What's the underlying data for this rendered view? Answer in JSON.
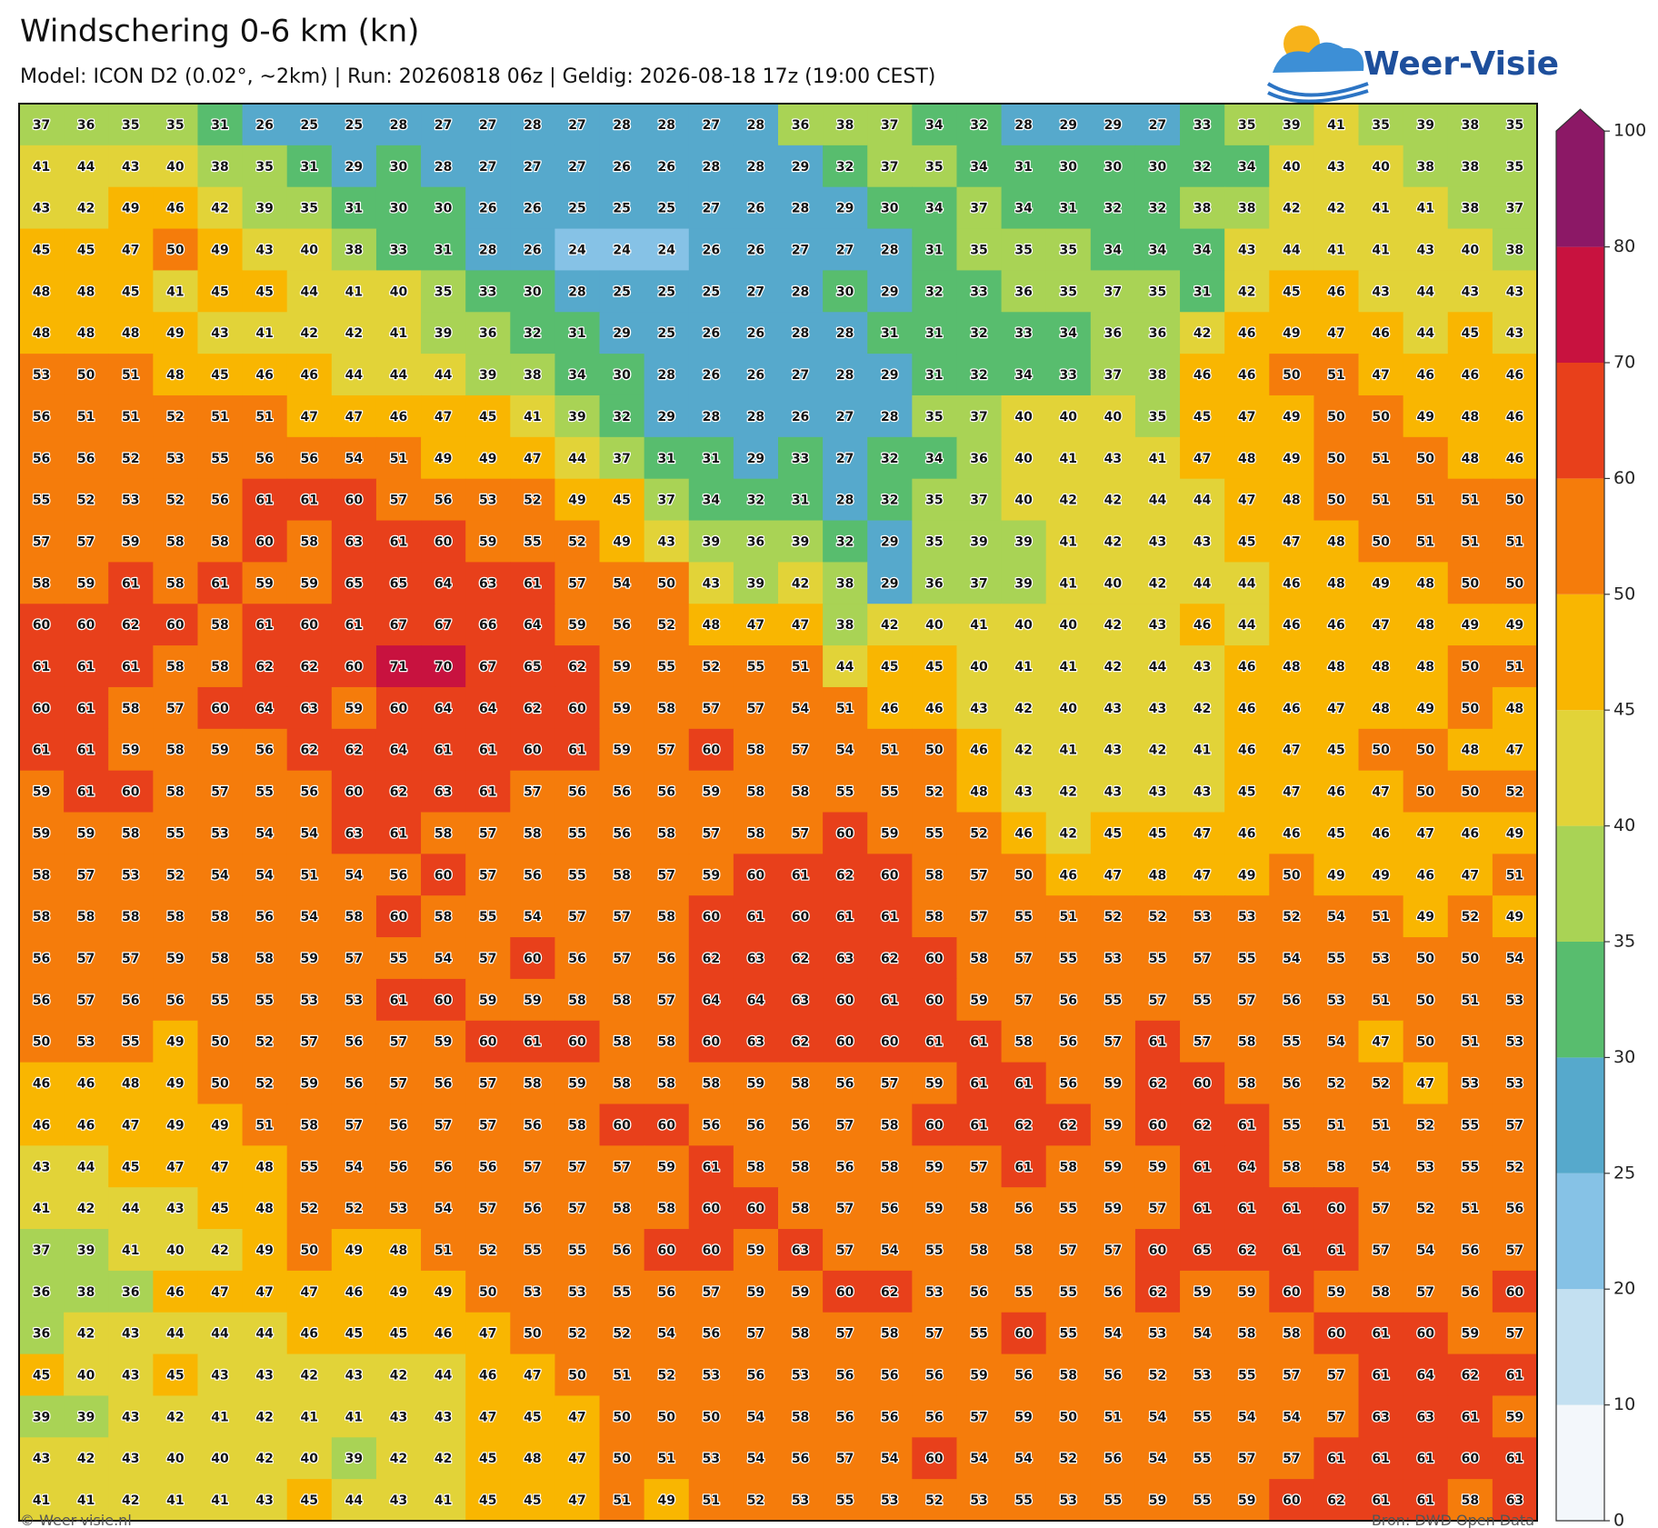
{
  "title": "Windschering 0-6 km (kn)",
  "subtitle": "Model: ICON D2 (0.02°, ~2km)  |  Run: 20260818 06z  |  Geldig: 2026-08-18 17z (19:00 CEST)",
  "logo": "Weer-Visie",
  "credit_left": "© Weer-visie.nl",
  "credit_right": "Bron: DWD Open Data",
  "colorbar": {
    "ticks": [
      0,
      10,
      20,
      25,
      30,
      35,
      40,
      45,
      50,
      60,
      70,
      80,
      100
    ],
    "colors": [
      "#f3f7fb",
      "#c3e0f1",
      "#86c2e6",
      "#56a9cc",
      "#58bd6e",
      "#a9d355",
      "#e2d338",
      "#f9b601",
      "#f57c0b",
      "#e8401b",
      "#c8123f",
      "#8c1866"
    ]
  },
  "grid": [
    [
      37,
      36,
      35,
      35,
      31,
      26,
      25,
      25,
      28,
      27,
      27,
      28,
      27,
      28,
      28,
      27,
      28,
      36,
      38,
      37,
      34,
      32,
      28,
      29,
      29,
      27,
      33,
      35,
      39,
      41,
      35,
      39,
      38,
      35
    ],
    [
      41,
      44,
      43,
      40,
      38,
      35,
      31,
      29,
      30,
      28,
      27,
      27,
      27,
      26,
      26,
      28,
      28,
      29,
      32,
      37,
      35,
      34,
      31,
      30,
      30,
      30,
      32,
      34,
      40,
      43,
      40,
      38,
      38,
      35
    ],
    [
      43,
      42,
      49,
      46,
      42,
      39,
      35,
      31,
      30,
      30,
      26,
      26,
      25,
      25,
      25,
      27,
      26,
      28,
      29,
      30,
      34,
      37,
      34,
      31,
      32,
      32,
      38,
      38,
      42,
      42,
      41,
      41,
      38,
      37
    ],
    [
      45,
      45,
      47,
      50,
      49,
      43,
      40,
      38,
      33,
      31,
      28,
      26,
      24,
      24,
      24,
      26,
      26,
      27,
      27,
      28,
      31,
      35,
      35,
      35,
      34,
      34,
      34,
      43,
      44,
      41,
      41,
      43,
      40,
      38
    ],
    [
      48,
      48,
      45,
      41,
      45,
      45,
      44,
      41,
      40,
      35,
      33,
      30,
      28,
      25,
      25,
      25,
      27,
      28,
      30,
      29,
      32,
      33,
      36,
      35,
      37,
      35,
      31,
      42,
      45,
      46,
      43,
      44,
      43,
      43
    ],
    [
      48,
      48,
      48,
      49,
      43,
      41,
      42,
      42,
      41,
      39,
      36,
      32,
      31,
      29,
      25,
      26,
      26,
      28,
      28,
      31,
      31,
      32,
      33,
      34,
      36,
      36,
      42,
      46,
      49,
      47,
      46,
      44,
      45,
      43
    ],
    [
      53,
      50,
      51,
      48,
      45,
      46,
      46,
      44,
      44,
      44,
      39,
      38,
      34,
      30,
      28,
      26,
      26,
      27,
      28,
      29,
      31,
      32,
      34,
      33,
      37,
      38,
      46,
      46,
      50,
      51,
      47,
      46,
      46,
      46
    ],
    [
      56,
      51,
      51,
      52,
      51,
      51,
      47,
      47,
      46,
      47,
      45,
      41,
      39,
      32,
      29,
      28,
      28,
      26,
      27,
      28,
      35,
      37,
      40,
      40,
      40,
      35,
      45,
      47,
      49,
      50,
      50,
      49,
      48,
      46
    ],
    [
      56,
      56,
      52,
      53,
      55,
      56,
      56,
      54,
      51,
      49,
      49,
      47,
      44,
      37,
      31,
      31,
      29,
      33,
      27,
      32,
      34,
      36,
      40,
      41,
      43,
      41,
      47,
      48,
      49,
      50,
      51,
      50,
      48,
      46
    ],
    [
      55,
      52,
      53,
      52,
      56,
      61,
      61,
      60,
      57,
      56,
      53,
      52,
      49,
      45,
      37,
      34,
      32,
      31,
      28,
      32,
      35,
      37,
      40,
      42,
      42,
      44,
      44,
      47,
      48,
      50,
      51,
      51,
      51,
      50
    ],
    [
      57,
      57,
      59,
      58,
      58,
      60,
      58,
      63,
      61,
      60,
      59,
      55,
      52,
      49,
      43,
      39,
      36,
      39,
      32,
      29,
      35,
      39,
      39,
      41,
      42,
      43,
      43,
      45,
      47,
      48,
      50,
      51,
      51,
      51
    ],
    [
      58,
      59,
      61,
      58,
      61,
      59,
      59,
      65,
      65,
      64,
      63,
      61,
      57,
      54,
      50,
      43,
      39,
      42,
      38,
      29,
      36,
      37,
      39,
      41,
      40,
      42,
      44,
      44,
      46,
      48,
      49,
      48,
      50,
      50
    ],
    [
      60,
      60,
      62,
      60,
      58,
      61,
      60,
      61,
      67,
      67,
      66,
      64,
      59,
      56,
      52,
      48,
      47,
      47,
      38,
      42,
      40,
      41,
      40,
      40,
      42,
      43,
      46,
      44,
      46,
      46,
      47,
      48,
      49,
      49
    ],
    [
      61,
      61,
      61,
      58,
      58,
      62,
      62,
      60,
      71,
      70,
      67,
      65,
      62,
      59,
      55,
      52,
      55,
      51,
      44,
      45,
      45,
      40,
      41,
      41,
      42,
      44,
      43,
      46,
      48,
      48,
      48,
      48,
      50,
      51
    ],
    [
      60,
      61,
      58,
      57,
      60,
      64,
      63,
      59,
      60,
      64,
      64,
      62,
      60,
      59,
      58,
      57,
      57,
      54,
      51,
      46,
      46,
      43,
      42,
      40,
      43,
      43,
      42,
      46,
      46,
      47,
      48,
      49,
      50,
      48
    ],
    [
      61,
      61,
      59,
      58,
      59,
      56,
      62,
      62,
      64,
      61,
      61,
      60,
      61,
      59,
      57,
      60,
      58,
      57,
      54,
      51,
      50,
      46,
      42,
      41,
      43,
      42,
      41,
      46,
      47,
      45,
      50,
      50,
      48,
      47
    ],
    [
      59,
      61,
      60,
      58,
      57,
      55,
      56,
      60,
      62,
      63,
      61,
      57,
      56,
      56,
      56,
      59,
      58,
      58,
      55,
      55,
      52,
      48,
      43,
      42,
      43,
      43,
      43,
      45,
      47,
      46,
      47,
      50,
      50,
      52
    ],
    [
      59,
      59,
      58,
      55,
      53,
      54,
      54,
      63,
      61,
      58,
      57,
      58,
      55,
      56,
      58,
      57,
      58,
      57,
      60,
      59,
      55,
      52,
      46,
      42,
      45,
      45,
      47,
      46,
      46,
      45,
      46,
      47,
      46,
      49
    ],
    [
      58,
      57,
      53,
      52,
      54,
      54,
      51,
      54,
      56,
      60,
      57,
      56,
      55,
      58,
      57,
      59,
      60,
      61,
      62,
      60,
      58,
      57,
      50,
      46,
      47,
      48,
      47,
      49,
      50,
      49,
      49,
      46,
      47,
      51
    ],
    [
      58,
      58,
      58,
      58,
      58,
      56,
      54,
      58,
      60,
      58,
      55,
      54,
      57,
      57,
      58,
      60,
      61,
      60,
      61,
      61,
      58,
      57,
      55,
      51,
      52,
      52,
      53,
      53,
      52,
      54,
      51,
      49,
      52,
      49
    ],
    [
      56,
      57,
      57,
      59,
      58,
      58,
      59,
      57,
      55,
      54,
      57,
      60,
      56,
      57,
      56,
      62,
      63,
      62,
      63,
      62,
      60,
      58,
      57,
      55,
      53,
      55,
      57,
      55,
      54,
      55,
      53,
      50,
      50,
      54
    ],
    [
      56,
      57,
      56,
      56,
      55,
      55,
      53,
      53,
      61,
      60,
      59,
      59,
      58,
      58,
      57,
      64,
      64,
      63,
      60,
      61,
      60,
      59,
      57,
      56,
      55,
      57,
      55,
      57,
      56,
      53,
      51,
      50,
      51,
      53
    ],
    [
      50,
      53,
      55,
      49,
      50,
      52,
      57,
      56,
      57,
      59,
      60,
      61,
      60,
      58,
      58,
      60,
      63,
      62,
      60,
      60,
      61,
      61,
      58,
      56,
      57,
      61,
      57,
      58,
      55,
      54,
      47,
      50,
      51,
      53
    ],
    [
      46,
      46,
      48,
      49,
      50,
      52,
      59,
      56,
      57,
      56,
      57,
      58,
      59,
      58,
      58,
      58,
      59,
      58,
      56,
      57,
      59,
      61,
      61,
      56,
      59,
      62,
      60,
      58,
      56,
      52,
      52,
      47,
      53,
      53
    ],
    [
      46,
      46,
      47,
      49,
      49,
      51,
      58,
      57,
      56,
      57,
      57,
      56,
      58,
      60,
      60,
      56,
      56,
      56,
      57,
      58,
      60,
      61,
      62,
      62,
      59,
      60,
      62,
      61,
      55,
      51,
      51,
      52,
      55,
      57
    ],
    [
      43,
      44,
      45,
      47,
      47,
      48,
      55,
      54,
      56,
      56,
      56,
      57,
      57,
      57,
      59,
      61,
      58,
      58,
      56,
      58,
      59,
      57,
      61,
      58,
      59,
      59,
      61,
      64,
      58,
      58,
      54,
      53,
      55,
      52
    ],
    [
      41,
      42,
      44,
      43,
      45,
      48,
      52,
      52,
      53,
      54,
      57,
      56,
      57,
      58,
      58,
      60,
      60,
      58,
      57,
      56,
      59,
      58,
      56,
      55,
      59,
      57,
      61,
      61,
      61,
      60,
      57,
      52,
      51,
      56
    ],
    [
      37,
      39,
      41,
      40,
      42,
      49,
      50,
      49,
      48,
      51,
      52,
      55,
      55,
      56,
      60,
      60,
      59,
      63,
      57,
      54,
      55,
      58,
      58,
      57,
      57,
      60,
      65,
      62,
      61,
      61,
      57,
      54,
      56,
      57
    ],
    [
      36,
      38,
      36,
      46,
      47,
      47,
      47,
      46,
      49,
      49,
      50,
      53,
      53,
      55,
      56,
      57,
      59,
      59,
      60,
      62,
      53,
      56,
      55,
      55,
      56,
      62,
      59,
      59,
      60,
      59,
      58,
      57,
      56,
      60
    ],
    [
      36,
      42,
      43,
      44,
      44,
      44,
      46,
      45,
      45,
      46,
      47,
      50,
      52,
      52,
      54,
      56,
      57,
      58,
      57,
      58,
      57,
      55,
      60,
      55,
      54,
      53,
      54,
      58,
      58,
      60,
      61,
      60,
      59,
      57
    ],
    [
      45,
      40,
      43,
      45,
      43,
      43,
      42,
      43,
      42,
      44,
      46,
      47,
      50,
      51,
      52,
      53,
      56,
      53,
      56,
      56,
      56,
      59,
      56,
      58,
      56,
      52,
      53,
      55,
      57,
      57,
      61,
      64,
      62,
      61
    ],
    [
      39,
      39,
      43,
      42,
      41,
      42,
      41,
      41,
      43,
      43,
      47,
      45,
      47,
      50,
      50,
      50,
      54,
      58,
      56,
      56,
      56,
      57,
      59,
      50,
      51,
      54,
      55,
      54,
      54,
      57,
      63,
      63,
      61,
      59
    ],
    [
      43,
      42,
      43,
      40,
      40,
      42,
      40,
      39,
      42,
      42,
      45,
      48,
      47,
      50,
      51,
      53,
      54,
      56,
      57,
      54,
      60,
      54,
      54,
      52,
      56,
      54,
      55,
      57,
      57,
      61,
      61,
      61,
      60,
      61
    ],
    [
      41,
      41,
      42,
      41,
      41,
      43,
      45,
      44,
      43,
      41,
      45,
      45,
      47,
      51,
      49,
      51,
      52,
      53,
      55,
      53,
      52,
      53,
      55,
      53,
      55,
      59,
      55,
      59,
      60,
      62,
      61,
      61,
      58,
      63
    ]
  ]
}
